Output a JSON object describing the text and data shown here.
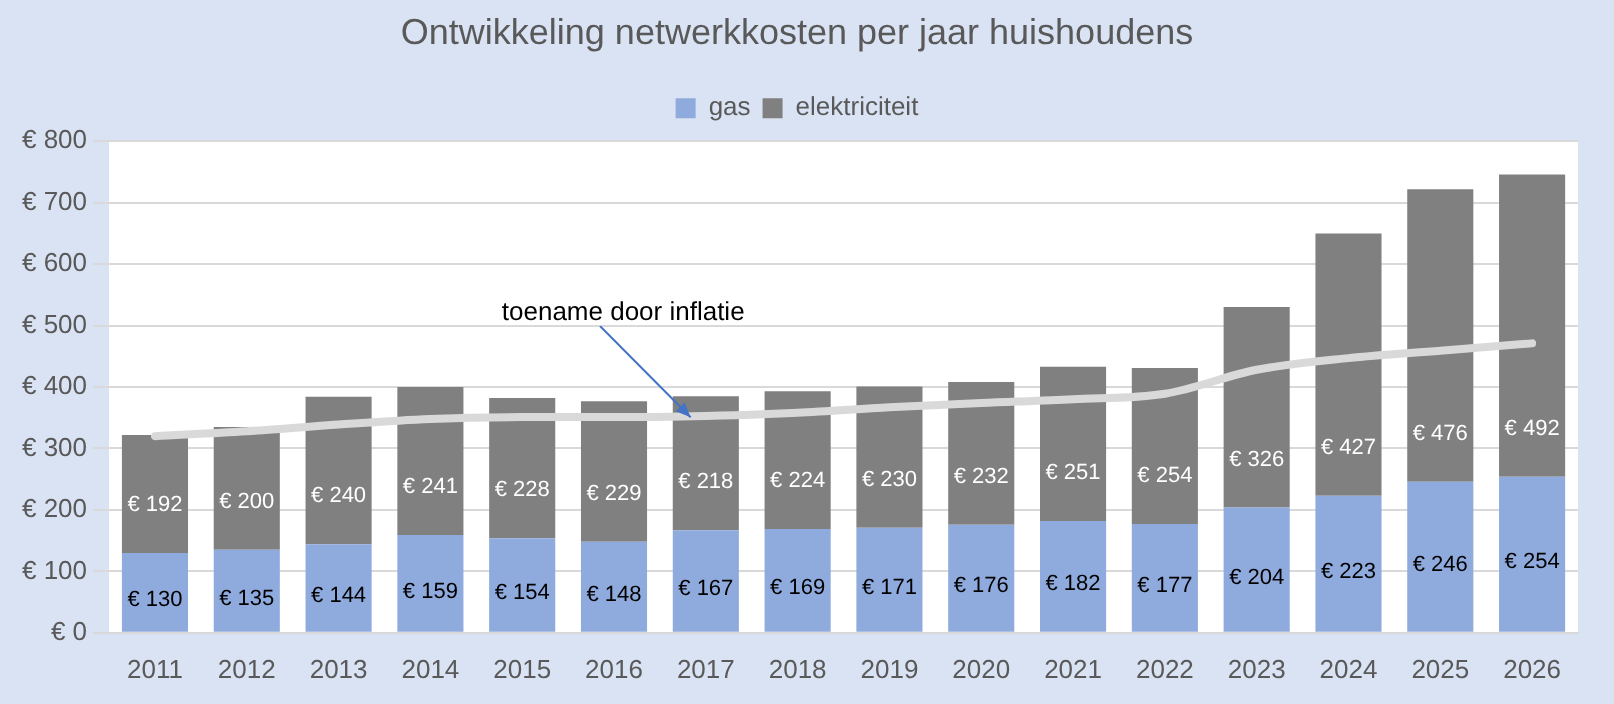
{
  "chart_data": {
    "type": "bar",
    "title": "Ontwikkeling netwerkkosten per jaar huishoudens",
    "categories": [
      "2011",
      "2012",
      "2013",
      "2014",
      "2015",
      "2016",
      "2017",
      "2018",
      "2019",
      "2020",
      "2021",
      "2022",
      "2023",
      "2024",
      "2025",
      "2026"
    ],
    "stacked": true,
    "series": [
      {
        "name": "gas",
        "color": "#8faadc",
        "values": [
          130,
          135,
          144,
          159,
          154,
          148,
          167,
          169,
          171,
          176,
          182,
          177,
          204,
          223,
          246,
          254
        ],
        "value_labels": [
          "€ 130",
          "€ 135",
          "€ 144",
          "€ 159",
          "€ 154",
          "€ 148",
          "€ 167",
          "€ 169",
          "€ 171",
          "€ 176",
          "€ 182",
          "€ 177",
          "€ 204",
          "€ 223",
          "€ 246",
          "€ 254"
        ]
      },
      {
        "name": "elektriciteit",
        "color": "#808080",
        "values": [
          192,
          200,
          240,
          241,
          228,
          229,
          218,
          224,
          230,
          232,
          251,
          254,
          326,
          427,
          476,
          492
        ],
        "value_labels": [
          "€ 192",
          "€ 200",
          "€ 240",
          "€ 241",
          "€ 228",
          "€ 229",
          "€ 218",
          "€ 224",
          "€ 230",
          "€ 232",
          "€ 251",
          "€ 254",
          "€ 326",
          "€ 427",
          "€ 476",
          "€ 492"
        ]
      },
      {
        "type": "line",
        "color": "#d9d9d9",
        "values": [
          320,
          328,
          339,
          348,
          351,
          351,
          353,
          358,
          367,
          374,
          380,
          389,
          428,
          447,
          459,
          471
        ]
      }
    ],
    "ylim": [
      0,
      800
    ],
    "yticks": [
      {
        "value": 0,
        "label": "€ 0"
      },
      {
        "value": 100,
        "label": "€ 100"
      },
      {
        "value": 200,
        "label": "€ 200"
      },
      {
        "value": 300,
        "label": "€ 300"
      },
      {
        "value": 400,
        "label": "€ 400"
      },
      {
        "value": 500,
        "label": "€ 500"
      },
      {
        "value": 600,
        "label": "€ 600"
      },
      {
        "value": 700,
        "label": "€ 700"
      },
      {
        "value": 800,
        "label": "€ 800"
      }
    ],
    "grid": "y",
    "legend": "top",
    "marker": "none",
    "annotations": [
      {
        "text": "toename door inflatie",
        "x": "2017",
        "y": 352
      }
    ]
  }
}
